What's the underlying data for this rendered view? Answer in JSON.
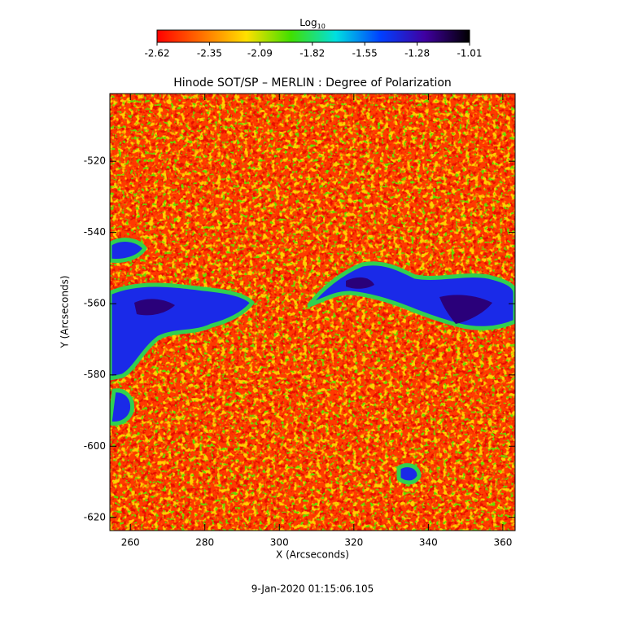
{
  "chart_data": {
    "type": "image",
    "title": "Hinode SOT/SP – MERLIN : Degree of Polarization",
    "x_label": "X (Arcseconds)",
    "y_label": "Y (Arcseconds)",
    "xlim": [
      254.5,
      363.3
    ],
    "ylim": [
      -623.7,
      -501
    ],
    "xticks": [
      260,
      280,
      300,
      320,
      340,
      360
    ],
    "yticks": [
      -520,
      -540,
      -560,
      -580,
      -600,
      -620
    ],
    "colorbar": {
      "label": "Log",
      "label_subscript": "10",
      "clim": [
        -2.62,
        -1.01
      ],
      "ticks": [
        -2.62,
        -2.35,
        -2.09,
        -1.82,
        -1.55,
        -1.28,
        -1.01
      ],
      "colormap": [
        "#ff0000",
        "#ff7000",
        "#ffe000",
        "#40e000",
        "#00e0e0",
        "#0040ff",
        "#4000a0",
        "#000000"
      ]
    },
    "footer": "9-Jan-2020 01:15:06.105"
  }
}
